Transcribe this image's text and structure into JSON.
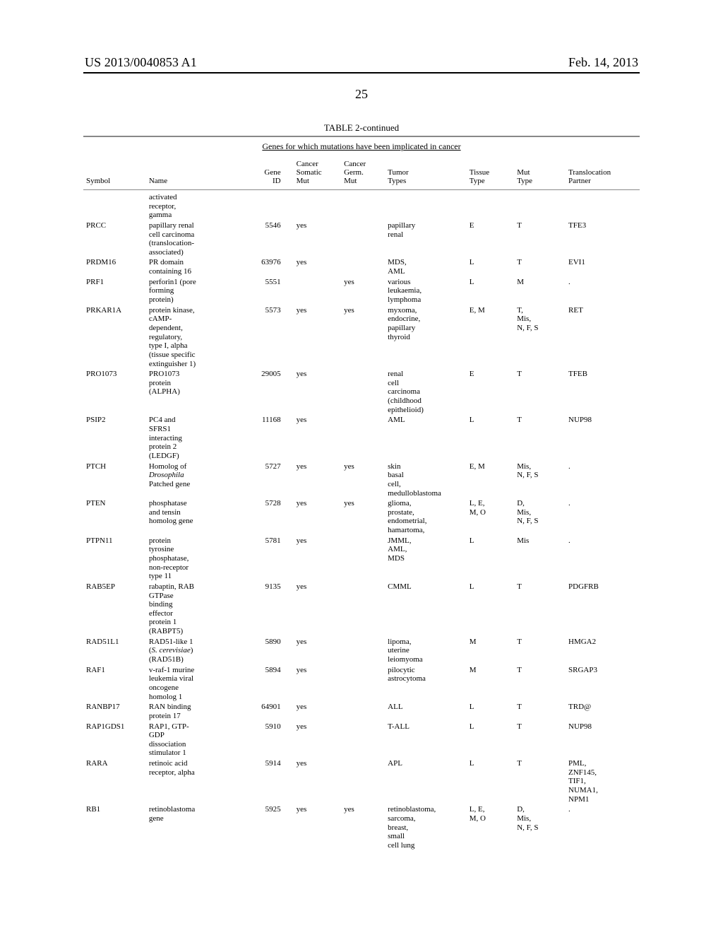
{
  "header": {
    "publication": "US 2013/0040853 A1",
    "date": "Feb. 14, 2013",
    "page_number": "25"
  },
  "table": {
    "title": "TABLE 2-continued",
    "subtitle": "Genes for which mutations have been implicated in cancer",
    "columns": {
      "symbol": "Symbol",
      "name": "Name",
      "gene_id": "Gene\nID",
      "somatic": "Cancer\nSomatic\nMut",
      "germ": "Cancer\nGerm.\nMut",
      "tumor": "Tumor\nTypes",
      "tissue": "Tissue\nType",
      "mut": "Mut\nType",
      "trans": "Translocation\nPartner"
    },
    "lead_row": {
      "name": "activated\nreceptor,\ngamma"
    },
    "rows": [
      {
        "symbol": "PRCC",
        "name": "papillary renal\ncell carcinoma\n(translocation-\nassociated)",
        "gene_id": "5546",
        "somatic": "yes",
        "germ": "",
        "tumor": "papillary\nrenal",
        "tissue": "E",
        "mut": "T",
        "trans": "TFE3"
      },
      {
        "symbol": "PRDM16",
        "name": "PR domain\ncontaining 16",
        "gene_id": "63976",
        "somatic": "yes",
        "germ": "",
        "tumor": "MDS,\nAML",
        "tissue": "L",
        "mut": "T",
        "trans": "EVI1"
      },
      {
        "symbol": "PRF1",
        "name": "perforin1 (pore\nforming\nprotein)",
        "gene_id": "5551",
        "somatic": "",
        "germ": "yes",
        "tumor": "various\nleukaemia,\nlymphoma",
        "tissue": "L",
        "mut": "M",
        "trans": "."
      },
      {
        "symbol": "PRKAR1A",
        "name": "protein kinase,\ncAMP-\ndependent,\nregulatory,\ntype I, alpha\n(tissue specific\nextinguisher 1)",
        "gene_id": "5573",
        "somatic": "yes",
        "germ": "yes",
        "tumor": "myxoma,\nendocrine,\npapillary\nthyroid",
        "tissue": "E, M",
        "mut": "T,\nMis,\nN, F, S",
        "trans": "RET"
      },
      {
        "symbol": "PRO1073",
        "name": "PRO1073\nprotein\n(ALPHA)",
        "gene_id": "29005",
        "somatic": "yes",
        "germ": "",
        "tumor": "renal\ncell\ncarcinoma\n(childhood\nepithelioid)",
        "tissue": "E",
        "mut": "T",
        "trans": "TFEB"
      },
      {
        "symbol": "PSIP2",
        "name": "PC4 and\nSFRS1\ninteracting\nprotein 2\n(LEDGF)",
        "gene_id": "11168",
        "somatic": "yes",
        "germ": "",
        "tumor": "AML",
        "tissue": "L",
        "mut": "T",
        "trans": "NUP98"
      },
      {
        "symbol": "PTCH",
        "name_html": "Homolog of\n<span class=\"italic\">Drosophila</span>\nPatched gene",
        "gene_id": "5727",
        "somatic": "yes",
        "germ": "yes",
        "tumor": "skin\nbasal\ncell,\nmedulloblastoma",
        "tissue": "E, M",
        "mut": "Mis,\nN, F, S",
        "trans": "."
      },
      {
        "symbol": "PTEN",
        "name": "phosphatase\nand tensin\nhomolog gene",
        "gene_id": "5728",
        "somatic": "yes",
        "germ": "yes",
        "tumor": "glioma,\nprostate,\nendometrial,\nhamartoma,",
        "tissue": "L, E,\nM, O",
        "mut": "D,\nMis,\nN, F, S",
        "trans": "."
      },
      {
        "symbol": "PTPN11",
        "name": "protein\ntyrosine\nphosphatase,\nnon-receptor\ntype 11",
        "gene_id": "5781",
        "somatic": "yes",
        "germ": "",
        "tumor": "JMML,\nAML,\nMDS",
        "tissue": "L",
        "mut": "Mis",
        "trans": "."
      },
      {
        "symbol": "RAB5EP",
        "name": "rabaptin, RAB\nGTPase\nbinding\neffector\nprotein 1\n(RABPT5)",
        "gene_id": "9135",
        "somatic": "yes",
        "germ": "",
        "tumor": "CMML",
        "tissue": "L",
        "mut": "T",
        "trans": "PDGFRB"
      },
      {
        "symbol": "RAD51L1",
        "name_html": "RAD51-like 1\n(<span class=\"italic\">S. cerevisiae</span>)\n(RAD51B)",
        "gene_id": "5890",
        "somatic": "yes",
        "germ": "",
        "tumor": "lipoma,\nuterine\nleiomyoma",
        "tissue": "M",
        "mut": "T",
        "trans": "HMGA2"
      },
      {
        "symbol": "RAF1",
        "name": "v-raf-1 murine\nleukemia viral\noncogene\nhomolog 1",
        "gene_id": "5894",
        "somatic": "yes",
        "germ": "",
        "tumor": "pilocytic\nastrocytoma",
        "tissue": "M",
        "mut": "T",
        "trans": "SRGAP3"
      },
      {
        "symbol": "RANBP17",
        "name": "RAN binding\nprotein 17",
        "gene_id": "64901",
        "somatic": "yes",
        "germ": "",
        "tumor": "ALL",
        "tissue": "L",
        "mut": "T",
        "trans": "TRD@"
      },
      {
        "symbol": "RAP1GDS1",
        "name": "RAP1, GTP-\nGDP\ndissociation\nstimulator 1",
        "gene_id": "5910",
        "somatic": "yes",
        "germ": "",
        "tumor": "T-ALL",
        "tissue": "L",
        "mut": "T",
        "trans": "NUP98"
      },
      {
        "symbol": "RARA",
        "name": "retinoic acid\nreceptor, alpha",
        "gene_id": "5914",
        "somatic": "yes",
        "germ": "",
        "tumor": "APL",
        "tissue": "L",
        "mut": "T",
        "trans": "PML,\nZNF145,\nTIF1,\nNUMA1,\nNPM1"
      },
      {
        "symbol": "RB1",
        "name": "retinoblastoma\ngene",
        "gene_id": "5925",
        "somatic": "yes",
        "germ": "yes",
        "tumor": "retinoblastoma,\nsarcoma,\nbreast,\nsmall\ncell lung",
        "tissue": "L, E,\nM, O",
        "mut": "D,\nMis,\nN, F, S",
        "trans": "."
      }
    ]
  }
}
